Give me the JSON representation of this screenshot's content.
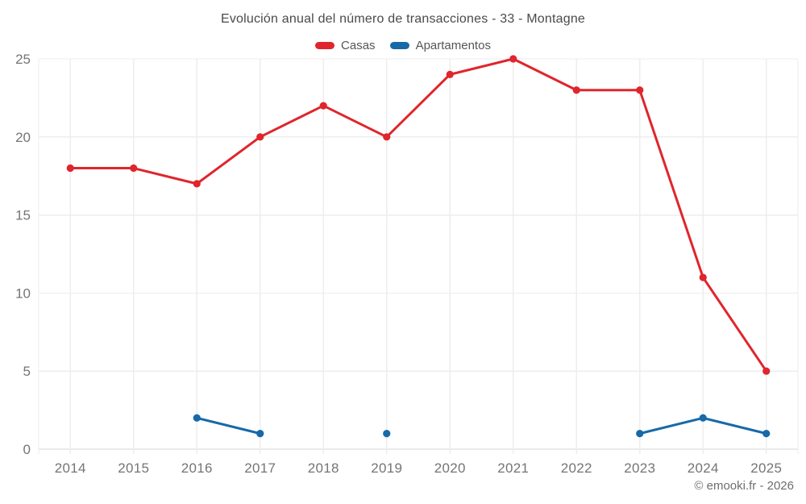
{
  "title": "Evolución anual del número de transacciones - 33 - Montagne",
  "legend": {
    "items": [
      {
        "label": "Casas",
        "color": "#e0252c"
      },
      {
        "label": "Apartamentos",
        "color": "#1769a8"
      }
    ]
  },
  "footer": {
    "credit": "© emooki.fr - 2026"
  },
  "chart_data": {
    "type": "line",
    "title": "Evolución anual del número de transacciones - 33 - Montagne",
    "x": [
      2014,
      2015,
      2016,
      2017,
      2018,
      2019,
      2020,
      2021,
      2022,
      2023,
      2024,
      2025
    ],
    "series": [
      {
        "name": "Casas",
        "color": "#e0252c",
        "values": [
          18,
          18,
          17,
          20,
          22,
          20,
          24,
          25,
          23,
          23,
          11,
          5
        ]
      },
      {
        "name": "Apartamentos",
        "color": "#1769a8",
        "values": [
          null,
          null,
          2,
          1,
          null,
          1,
          null,
          null,
          null,
          1,
          2,
          1
        ]
      }
    ],
    "ylim": [
      0,
      25
    ],
    "yticks": [
      0,
      5,
      10,
      15,
      20,
      25
    ],
    "grid": true,
    "legend_position": "top",
    "xlabel": "",
    "ylabel": ""
  }
}
